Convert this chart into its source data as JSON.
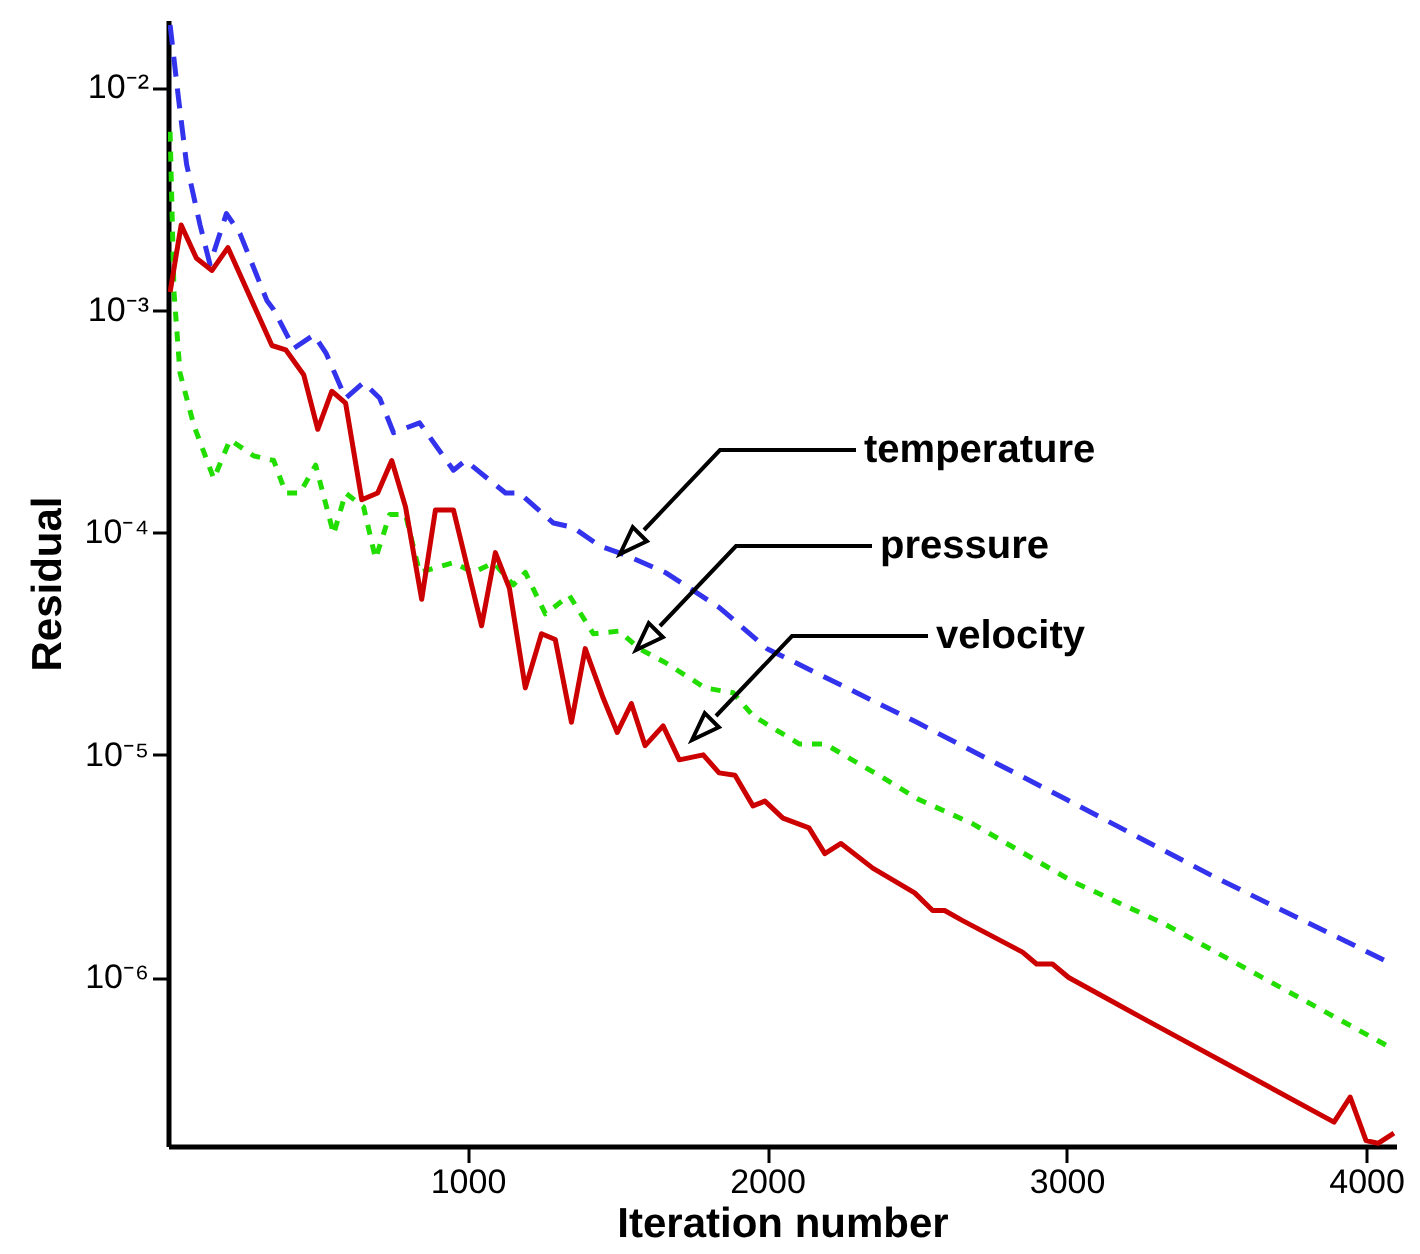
{
  "chart_data": {
    "type": "line",
    "xlabel": "Iteration number",
    "ylabel": "Residual",
    "log": "y",
    "xlim": [
      0,
      4100
    ],
    "xticks": [
      1000,
      2000,
      3000,
      4000
    ],
    "ylim": [
      1.75e-07,
      0.02
    ],
    "yticks": [
      {
        "value": 0.01,
        "label": "10⁻²"
      },
      {
        "value": 0.001,
        "label": "10⁻³"
      },
      {
        "value": 0.0001,
        "label": "10⁻⁴"
      },
      {
        "value": 1e-05,
        "label": "10⁻⁵"
      },
      {
        "value": 1e-06,
        "label": "10⁻⁶"
      }
    ],
    "annotations": [
      "temperature",
      "pressure",
      "velocity"
    ],
    "series": [
      {
        "color": "#3333ee",
        "line_style": "dashed",
        "x": [
          7,
          35,
          62,
          107,
          140,
          195,
          240,
          330,
          353,
          420,
          487,
          527,
          593,
          653,
          707,
          753,
          840,
          953,
          993,
          1127,
          1173,
          1287,
          1353,
          1440,
          1527,
          1660,
          1840,
          2000,
          2500,
          3000,
          3500,
          4087
        ],
        "values": [
          0.019,
          0.0089,
          0.0045,
          0.0024,
          0.0016,
          0.0027,
          0.0022,
          0.0011,
          0.001,
          0.00067,
          0.00077,
          0.00064,
          0.0004,
          0.00047,
          0.0004,
          0.00028,
          0.00031,
          0.00019,
          0.00021,
          0.00015,
          0.00015,
          0.00011,
          0.000105,
          8.7e-05,
          7.9e-05,
          6.6e-05,
          4.6e-05,
          3e-05,
          1.4e-05,
          6.3e-06,
          2.8e-06,
          1.15e-06
        ]
      },
      {
        "color": "#22dd00",
        "line_style": "dotted",
        "x": [
          7,
          20,
          40,
          87,
          153,
          207,
          287,
          353,
          393,
          440,
          493,
          553,
          593,
          653,
          693,
          740,
          793,
          840,
          953,
          1020,
          1087,
          1153,
          1193,
          1260,
          1340,
          1420,
          1507,
          1573,
          1660,
          1793,
          1887,
          1953,
          2107,
          2193,
          2373,
          2507,
          2687,
          3020,
          3327,
          4087
        ],
        "values": [
          0.0063,
          0.0012,
          0.00052,
          0.0003,
          0.000174,
          0.00026,
          0.00022,
          0.00021,
          0.00015,
          0.00015,
          0.0002,
          9.8e-05,
          0.00015,
          0.00013,
          7.6e-05,
          0.00012,
          0.00012,
          6.6e-05,
          7.3e-05,
          6.6e-05,
          7.3e-05,
          5.8e-05,
          6.6e-05,
          4.3e-05,
          5.2e-05,
          3.5e-05,
          3.6e-05,
          3e-05,
          2.6e-05,
          2e-05,
          1.9e-05,
          1.5e-05,
          1.12e-05,
          1.12e-05,
          8.1e-06,
          6.3e-06,
          4.9e-06,
          2.7e-06,
          1.74e-06,
          4.8e-07
        ]
      },
      {
        "color": "#cc0000",
        "line_style": "solid",
        "x": [
          7,
          44,
          95,
          147,
          200,
          293,
          347,
          393,
          453,
          500,
          547,
          593,
          647,
          700,
          747,
          793,
          847,
          893,
          953,
          1047,
          1093,
          1140,
          1193,
          1247,
          1293,
          1347,
          1393,
          1453,
          1500,
          1547,
          1593,
          1653,
          1707,
          1787,
          1840,
          1893,
          1953,
          1993,
          2053,
          2140,
          2193,
          2247,
          2353,
          2493,
          2553,
          2593,
          2653,
          2853,
          2900,
          2953,
          3007,
          3153,
          3260,
          3893,
          3947,
          4000,
          4040,
          4093
        ],
        "values": [
          0.0012,
          0.0024,
          0.0017,
          0.0015,
          0.0019,
          0.001,
          0.00069,
          0.00066,
          0.00051,
          0.00029,
          0.00043,
          0.00038,
          0.00014,
          0.00015,
          0.00021,
          0.00013,
          5e-05,
          0.000126,
          0.000126,
          3.8e-05,
          8.1e-05,
          5.6e-05,
          2e-05,
          3.5e-05,
          3.3e-05,
          1.4e-05,
          3e-05,
          1.8e-05,
          1.26e-05,
          1.7e-05,
          1.1e-05,
          1.35e-05,
          9.5e-06,
          1e-05,
          8.3e-06,
          8.1e-06,
          5.9e-06,
          6.2e-06,
          5.2e-06,
          4.7e-06,
          3.6e-06,
          4e-06,
          3.1e-06,
          2.4e-06,
          2e-06,
          2e-06,
          1.8e-06,
          1.3e-06,
          1.15e-06,
          1.15e-06,
          1e-06,
          7.8e-07,
          6.5e-07,
          2.24e-07,
          2.9e-07,
          1.85e-07,
          1.8e-07,
          2e-07
        ]
      }
    ]
  }
}
